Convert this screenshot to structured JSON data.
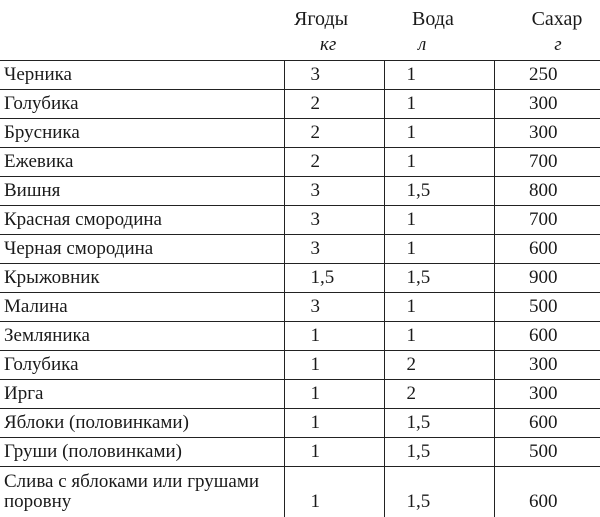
{
  "header": {
    "col_berries": "Ягоды",
    "col_water": "Вода",
    "col_sugar": "Сахар",
    "unit_berries": "кг",
    "unit_water": "л",
    "unit_sugar": "г"
  },
  "rows": [
    {
      "name": "Черника",
      "berries": "3",
      "water": "1",
      "sugar": "250"
    },
    {
      "name": "Голубика",
      "berries": "2",
      "water": "1",
      "sugar": "300"
    },
    {
      "name": "Брусника",
      "berries": "2",
      "water": "1",
      "sugar": "300"
    },
    {
      "name": "Ежевика",
      "berries": "2",
      "water": "1",
      "sugar": "700"
    },
    {
      "name": "Вишня",
      "berries": "3",
      "water": "1,5",
      "sugar": "800"
    },
    {
      "name": "Красная смородина",
      "berries": "3",
      "water": "1",
      "sugar": "700"
    },
    {
      "name": "Черная смородина",
      "berries": "3",
      "water": "1",
      "sugar": "600"
    },
    {
      "name": "Крыжовник",
      "berries": "1,5",
      "water": "1,5",
      "sugar": "900"
    },
    {
      "name": "Малина",
      "berries": "3",
      "water": "1",
      "sugar": "500"
    },
    {
      "name": "Земляника",
      "berries": "1",
      "water": "1",
      "sugar": "600"
    },
    {
      "name": "Голубика",
      "berries": "1",
      "water": "2",
      "sugar": "300"
    },
    {
      "name": "Ирга",
      "berries": "1",
      "water": "2",
      "sugar": "300"
    },
    {
      "name": "Яблоки (половинками)",
      "berries": "1",
      "water": "1,5",
      "sugar": "600"
    },
    {
      "name": "Груши (половинками)",
      "berries": "1",
      "water": "1,5",
      "sugar": "500"
    },
    {
      "name": "Слива с яблоками или грушами поровну",
      "berries": "1",
      "water": "1,5",
      "sugar": "600"
    }
  ]
}
